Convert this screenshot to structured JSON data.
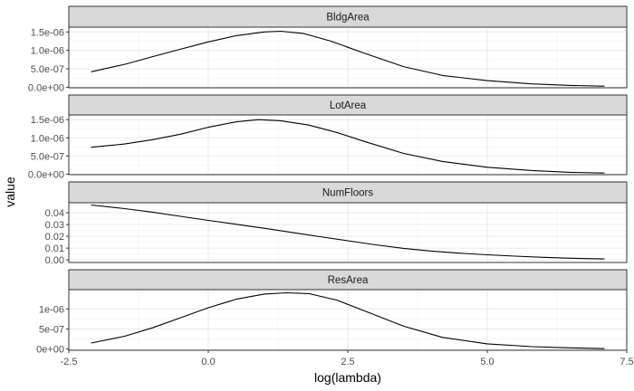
{
  "chart_data": {
    "type": "line",
    "facet_layout": "stacked-rows",
    "shared_x_axis": true,
    "free_y_scales": true,
    "xlabel": "log(lambda)",
    "ylabel": "value",
    "xlim": [
      -2.5,
      7.5
    ],
    "x_ticks": [
      -2.5,
      0.0,
      2.5,
      5.0,
      7.5
    ],
    "x_tick_labels": [
      "-2.5",
      "0.0",
      "2.5",
      "5.0",
      "7.5"
    ],
    "grid": true,
    "panel_border": true,
    "line_color": "#000000",
    "strip_fill": "#d9d9d9",
    "grid_color": "#ebebeb",
    "panels": [
      {
        "strip": "BldgArea",
        "ylim": [
          -1.5e-08,
          1.63e-06
        ],
        "y_ticks": [
          0,
          5e-07,
          1e-06,
          1.5e-06
        ],
        "y_tick_labels": [
          "0.0e+00",
          "5.0e-07",
          "1.0e-06",
          "1.5e-06"
        ],
        "x": [
          -2.1,
          -1.5,
          -1.0,
          -0.5,
          0.0,
          0.5,
          1.0,
          1.3,
          1.7,
          2.2,
          2.8,
          3.5,
          4.2,
          5.0,
          5.8,
          6.5,
          7.1
        ],
        "y": [
          4.2e-07,
          6.2e-07,
          8.3e-07,
          1.03e-06,
          1.23e-06,
          1.4e-06,
          1.5e-06,
          1.52e-06,
          1.46e-06,
          1.25e-06,
          9.2e-07,
          5.6e-07,
          3.2e-07,
          1.8e-07,
          9e-08,
          5e-08,
          3e-08
        ]
      },
      {
        "strip": "LotArea",
        "ylim": [
          -1.5e-08,
          1.63e-06
        ],
        "y_ticks": [
          0,
          5e-07,
          1e-06,
          1.5e-06
        ],
        "y_tick_labels": [
          "0.0e+00",
          "5.0e-07",
          "1.0e-06",
          "1.5e-06"
        ],
        "x": [
          -2.1,
          -1.5,
          -1.0,
          -0.5,
          0.0,
          0.5,
          0.9,
          1.3,
          1.8,
          2.3,
          2.8,
          3.5,
          4.2,
          5.0,
          5.8,
          6.5,
          7.1
        ],
        "y": [
          7.4e-07,
          8.3e-07,
          9.5e-07,
          1.1e-06,
          1.29e-06,
          1.44e-06,
          1.5e-06,
          1.47e-06,
          1.35e-06,
          1.15e-06,
          9e-07,
          5.7e-07,
          3.5e-07,
          1.9e-07,
          1e-07,
          5e-08,
          3e-08
        ]
      },
      {
        "strip": "NumFloors",
        "ylim": [
          -0.0022,
          0.0485
        ],
        "y_ticks": [
          0,
          0.01,
          0.02,
          0.03,
          0.04
        ],
        "y_tick_labels": [
          "0.00",
          "0.01",
          "0.02",
          "0.03",
          "0.04"
        ],
        "x": [
          -2.1,
          -1.5,
          -1.0,
          -0.5,
          0.0,
          0.5,
          1.0,
          1.5,
          2.0,
          2.5,
          3.0,
          3.5,
          4.0,
          4.5,
          5.0,
          5.5,
          6.0,
          6.5,
          7.1
        ],
        "y": [
          0.0466,
          0.0435,
          0.0405,
          0.037,
          0.0335,
          0.0302,
          0.0268,
          0.0233,
          0.0197,
          0.0162,
          0.0128,
          0.0098,
          0.0075,
          0.0057,
          0.0043,
          0.0032,
          0.0022,
          0.0014,
          0.0008
        ]
      },
      {
        "strip": "ResArea",
        "ylim": [
          -3e-08,
          1.48e-06
        ],
        "y_ticks": [
          0,
          5e-07,
          1e-06
        ],
        "y_tick_labels": [
          "0e+00",
          "5e-07",
          "1e-06"
        ],
        "x": [
          -2.1,
          -1.5,
          -1.0,
          -0.5,
          0.0,
          0.5,
          1.0,
          1.4,
          1.8,
          2.3,
          2.8,
          3.5,
          4.2,
          5.0,
          5.8,
          6.5,
          7.1
        ],
        "y": [
          1.5e-07,
          3.2e-07,
          5.3e-07,
          7.8e-07,
          1.03e-06,
          1.24e-06,
          1.37e-06,
          1.4e-06,
          1.38e-06,
          1.22e-06,
          9.5e-07,
          5.7e-07,
          2.9e-07,
          1.3e-07,
          6e-08,
          3e-08,
          1e-08
        ]
      }
    ]
  }
}
